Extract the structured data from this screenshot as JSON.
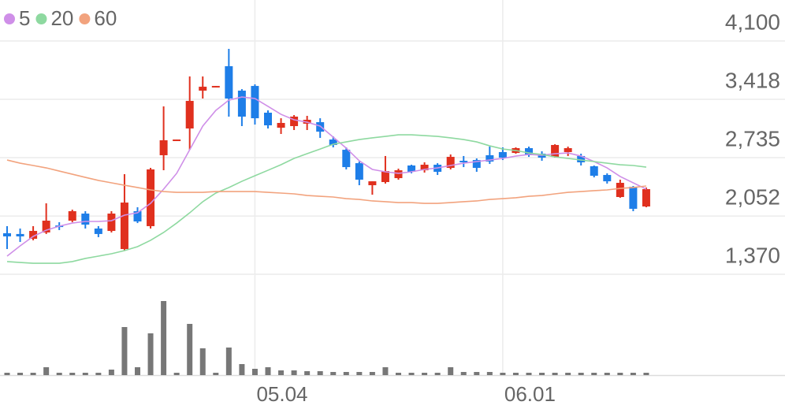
{
  "chart_data": {
    "type": "candlestick",
    "categories": [
      null,
      null,
      null,
      null,
      null,
      null,
      null,
      null,
      null,
      null,
      null,
      null,
      null,
      null,
      null,
      null,
      null,
      null,
      null,
      "05.04",
      null,
      null,
      null,
      null,
      null,
      null,
      null,
      null,
      null,
      null,
      null,
      null,
      null,
      null,
      null,
      null,
      null,
      null,
      "06.01",
      null,
      null,
      null,
      null,
      null,
      null,
      null,
      null,
      null,
      null,
      null
    ],
    "open": [
      1850,
      1841,
      1785,
      1859,
      1941,
      1997,
      2080,
      1905,
      1877,
      1665,
      2108,
      1933,
      2763,
      2938,
      3076,
      3519,
      3565,
      3805,
      3519,
      3574,
      3261,
      3085,
      3104,
      3132,
      3150,
      2947,
      2827,
      2670,
      2412,
      2449,
      2495,
      2643,
      2587,
      2652,
      2615,
      2698,
      2707,
      2763,
      2800,
      2790,
      2846,
      2781,
      2744,
      2800,
      2754,
      2634,
      2532,
      2274,
      2394,
      2163
    ],
    "high": [
      1933,
      1905,
      1933,
      2200,
      1979,
      2126,
      2108,
      1933,
      2108,
      2541,
      2154,
      2615,
      3335,
      2947,
      3685,
      3685,
      3574,
      4008,
      3537,
      3593,
      3288,
      3196,
      3233,
      3224,
      3196,
      2984,
      2855,
      2689,
      2458,
      2754,
      2606,
      2652,
      2680,
      2670,
      2772,
      2754,
      2726,
      2864,
      2855,
      2855,
      2864,
      2809,
      2892,
      2864,
      2781,
      2643,
      2551,
      2477,
      2403,
      2385
    ],
    "low": [
      1665,
      1748,
      1767,
      1841,
      1887,
      1979,
      1905,
      1804,
      1859,
      1647,
      1969,
      1905,
      2588,
      2938,
      2827,
      3427,
      3565,
      3215,
      3104,
      3122,
      3076,
      3012,
      3058,
      3058,
      2966,
      2855,
      2597,
      2412,
      2301,
      2431,
      2477,
      2551,
      2560,
      2532,
      2597,
      2624,
      2569,
      2661,
      2707,
      2781,
      2744,
      2698,
      2735,
      2754,
      2643,
      2504,
      2431,
      2265,
      2108,
      2154
    ],
    "close": [
      1813,
      1813,
      1877,
      1997,
      1933,
      2108,
      1951,
      1841,
      2080,
      2209,
      1988,
      2597,
      2938,
      2947,
      3399,
      3565,
      3574,
      3427,
      3215,
      3196,
      3113,
      3141,
      3215,
      3178,
      3039,
      2883,
      2624,
      2477,
      2458,
      2578,
      2587,
      2569,
      2652,
      2569,
      2744,
      2689,
      2615,
      2689,
      2735,
      2846,
      2763,
      2735,
      2883,
      2846,
      2680,
      2523,
      2458,
      2440,
      2136,
      2366
    ],
    "up_color": "#e0301e",
    "down_color": "#1e7ee8",
    "series": [
      {
        "name": "5",
        "color": "#cf8fe8",
        "values": [
          1582,
          1702,
          1813,
          1886,
          1933,
          1969,
          1988,
          1988,
          1997,
          2062,
          2089,
          2200,
          2366,
          2551,
          2827,
          3104,
          3288,
          3408,
          3445,
          3427,
          3335,
          3242,
          3178,
          3150,
          3104,
          2975,
          2846,
          2698,
          2597,
          2569,
          2551,
          2569,
          2597,
          2615,
          2643,
          2670,
          2689,
          2707,
          2726,
          2753,
          2772,
          2763,
          2781,
          2790,
          2753,
          2689,
          2615,
          2514,
          2440,
          2366
        ]
      },
      {
        "name": "20",
        "color": "#8ed9a0",
        "values": [
          1518,
          1508,
          1499,
          1499,
          1499,
          1518,
          1555,
          1582,
          1610,
          1647,
          1693,
          1767,
          1859,
          1969,
          2089,
          2219,
          2320,
          2385,
          2458,
          2523,
          2587,
          2652,
          2726,
          2781,
          2836,
          2892,
          2919,
          2947,
          2966,
          2984,
          3002,
          3002,
          2993,
          2984,
          2966,
          2947,
          2919,
          2873,
          2836,
          2818,
          2790,
          2772,
          2744,
          2726,
          2707,
          2689,
          2670,
          2652,
          2643,
          2624
        ]
      },
      {
        "name": "60",
        "color": "#f2a37e",
        "values": [
          2707,
          2670,
          2643,
          2615,
          2578,
          2541,
          2504,
          2468,
          2440,
          2412,
          2385,
          2357,
          2338,
          2329,
          2329,
          2329,
          2338,
          2338,
          2338,
          2338,
          2329,
          2320,
          2311,
          2292,
          2283,
          2274,
          2255,
          2246,
          2228,
          2219,
          2209,
          2209,
          2200,
          2200,
          2209,
          2219,
          2228,
          2246,
          2255,
          2265,
          2283,
          2292,
          2311,
          2329,
          2338,
          2348,
          2357,
          2375,
          2385,
          2403
        ]
      }
    ],
    "volume": {
      "color": "#777777",
      "ylim": [
        0,
        100
      ],
      "values": [
        3,
        3,
        3,
        10,
        3,
        3,
        3,
        3,
        7,
        61,
        10,
        53,
        94,
        3,
        65,
        34,
        3,
        35,
        14,
        8,
        10,
        6,
        6,
        5,
        5,
        4,
        4,
        4,
        4,
        10,
        3,
        3,
        3,
        3,
        10,
        4,
        4,
        4,
        3,
        3,
        3,
        3,
        3,
        3,
        3,
        3,
        3,
        3,
        3,
        3
      ]
    },
    "ylim": [
      1370,
      4580
    ],
    "yticks": [
      {
        "value": 4100,
        "label": "4,100"
      },
      {
        "value": 3418,
        "label": "3,418"
      },
      {
        "value": 2735,
        "label": "2,735"
      },
      {
        "value": 2052,
        "label": "2,052"
      },
      {
        "value": 1370,
        "label": "1,370"
      }
    ],
    "grid": true
  }
}
